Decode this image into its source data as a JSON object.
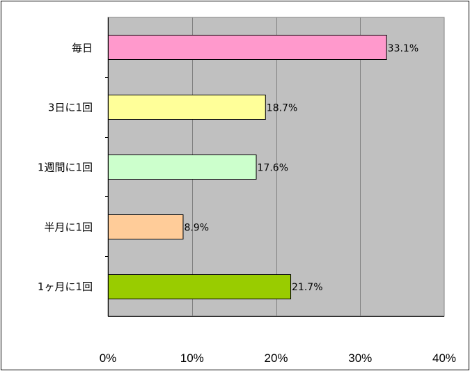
{
  "chart_data": {
    "type": "bar",
    "orientation": "horizontal",
    "categories": [
      "毎日",
      "3日に1回",
      "1週間に1回",
      "半月に1回",
      "1ヶ月に1回"
    ],
    "values": [
      33.1,
      18.7,
      17.6,
      8.9,
      21.7
    ],
    "data_labels": [
      "33.1%",
      "18.7%",
      "17.6%",
      "8.9%",
      "21.7%"
    ],
    "bar_colors": [
      "#FF99CC",
      "#FFFF99",
      "#CCFFCC",
      "#FFCC99",
      "#99CC00"
    ],
    "plot_background": "#C0C0C0",
    "gridline_color": "#808080",
    "xlim": [
      0,
      40
    ],
    "x_ticks": [
      0,
      10,
      20,
      30,
      40
    ],
    "x_tick_labels": [
      "0%",
      "10%",
      "20%",
      "30%",
      "40%"
    ],
    "grid": true,
    "legend": "none",
    "title": "",
    "xlabel": "",
    "ylabel": ""
  }
}
